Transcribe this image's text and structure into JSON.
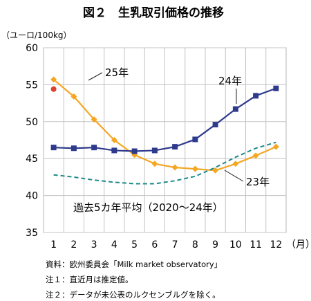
{
  "chart_data": {
    "type": "line",
    "title": "図２　生乳取引価格の推移",
    "y_unit": "（ユーロ/100kg）",
    "x_unit": "（月）",
    "categories": [
      "1",
      "2",
      "3",
      "4",
      "5",
      "6",
      "7",
      "8",
      "9",
      "10",
      "11",
      "12"
    ],
    "ylim": [
      35,
      60
    ],
    "yticks": [
      35,
      40,
      45,
      50,
      55,
      60
    ],
    "grid": true,
    "series": [
      {
        "name": "25年",
        "color": "#f5a623",
        "marker": "diamond",
        "values": [
          55.7,
          53.4,
          50.3,
          47.5,
          45.5,
          44.3,
          43.8,
          43.6,
          null,
          null,
          null,
          null
        ]
      },
      {
        "name": "25年 推定値",
        "color": "#e0402a",
        "marker": "circle",
        "values": [
          54.4,
          null,
          null,
          null,
          null,
          null,
          null,
          null,
          null,
          null,
          null,
          null
        ]
      },
      {
        "name": "24年",
        "color": "#2e3a8c",
        "marker": "square",
        "values": [
          46.5,
          46.4,
          46.5,
          46.1,
          46.0,
          46.1,
          46.6,
          47.6,
          49.6,
          51.7,
          53.5,
          54.5
        ]
      },
      {
        "name": "23年",
        "color": "#f5a623",
        "marker": "diamond",
        "values": [
          null,
          null,
          null,
          null,
          null,
          null,
          null,
          43.6,
          43.4,
          44.3,
          45.4,
          46.6
        ]
      },
      {
        "name": "過去5カ年平均（2020～24年）",
        "color": "#1d8a8a",
        "marker": "none",
        "dashed": true,
        "values": [
          42.8,
          42.5,
          42.1,
          41.8,
          41.6,
          41.6,
          42.0,
          42.6,
          43.8,
          45.2,
          46.4,
          47.2
        ]
      }
    ],
    "annotations": {
      "label_25": "25年",
      "label_24": "24年",
      "label_23": "23年",
      "label_avg": "過去5カ年平均（2020～24年）"
    }
  },
  "notes": [
    "資料：欧州委員会「Milk market observatory」",
    "注１：直近月は推定値。",
    "注２：データが未公表のルクセンブルグを除く。"
  ]
}
